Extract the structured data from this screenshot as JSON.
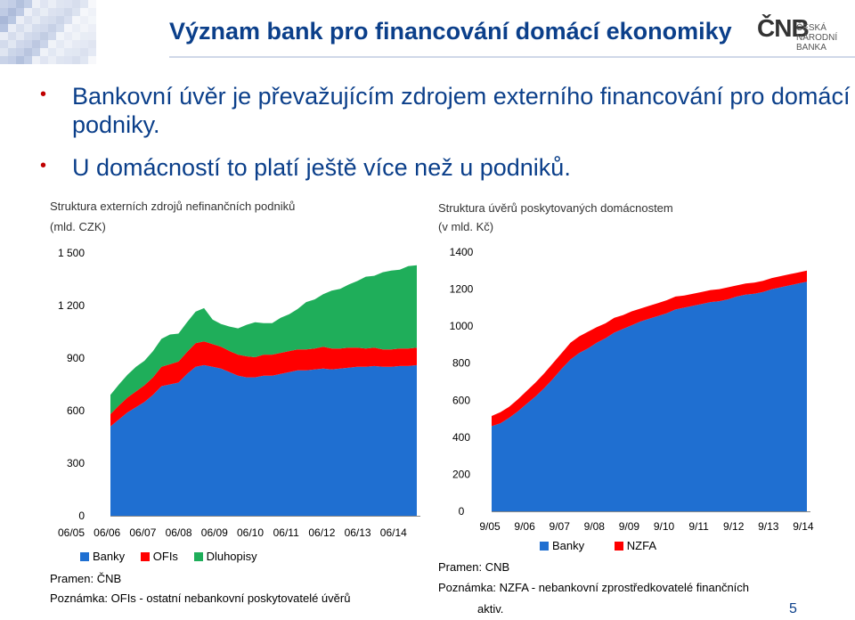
{
  "slide": {
    "title": "Význam bank pro financování domácí ekonomiky",
    "bullets": [
      "Bankovní úvěr je převažujícím zdrojem externího financování pro domácí podniky.",
      "U domácností to platí ještě více než u podniků."
    ],
    "logo": {
      "mark": "ČNB",
      "line1": "ČESKÁ",
      "line2": "NÁRODNÍ BANKA"
    },
    "page_number": "5",
    "colors": {
      "title": "#0b3f8a",
      "bullet_dot": "#c00000"
    }
  },
  "left_chart": {
    "title": "Struktura externích zdrojů nefinančních podniků",
    "unit": "(mld. CZK)",
    "source": "Pramen: ČNB",
    "note": "Poznámka: OFIs - ostatní nebankovní poskytovatelé úvěrů"
  },
  "right_chart": {
    "title": "Struktura úvěrů poskytovaných domácnostem",
    "unit": "(v mld. Kč)",
    "source": "Pramen: CNB",
    "note_line1": "Poznámka: NZFA - nebankovní zprostředkovatelé finančních",
    "note_line2": "aktiv."
  },
  "chart_data": [
    {
      "type": "area",
      "stacked": true,
      "title": "Struktura externích zdrojů nefinančních podniků",
      "ylabel": "(mld. CZK)",
      "ylim": [
        0,
        1500
      ],
      "yticks": [
        0,
        300,
        600,
        900,
        1200,
        1500
      ],
      "ytick_labels": [
        "0",
        "300",
        "600",
        "900",
        "1 200",
        "1 500"
      ],
      "xtick_labels": [
        "06/05",
        "06/06",
        "06/07",
        "06/08",
        "06/09",
        "06/10",
        "06/11",
        "06/12",
        "06/13",
        "06/14"
      ],
      "xlim": [
        0,
        36
      ],
      "grid": false,
      "legend_position": "bottom",
      "series": [
        {
          "name": "Banky",
          "color": "#1f6fd1",
          "values": [
            510,
            550,
            590,
            620,
            650,
            690,
            740,
            750,
            760,
            810,
            850,
            860,
            850,
            840,
            820,
            800,
            790,
            790,
            800,
            800,
            810,
            820,
            830,
            830,
            835,
            840,
            835,
            840,
            845,
            850,
            850,
            855,
            850,
            850,
            855,
            855,
            860
          ]
        },
        {
          "name": "OFIs",
          "color": "#ff0000",
          "values": [
            70,
            80,
            85,
            90,
            95,
            100,
            110,
            115,
            120,
            125,
            135,
            135,
            130,
            125,
            120,
            120,
            120,
            115,
            120,
            120,
            120,
            120,
            120,
            120,
            120,
            125,
            120,
            115,
            115,
            110,
            105,
            105,
            100,
            100,
            100,
            100,
            100
          ]
        },
        {
          "name": "Dluhopisy",
          "color": "#1fae5a",
          "values": [
            110,
            120,
            130,
            140,
            140,
            150,
            160,
            170,
            160,
            170,
            180,
            190,
            140,
            130,
            140,
            150,
            180,
            200,
            180,
            180,
            200,
            210,
            230,
            270,
            280,
            300,
            330,
            340,
            360,
            380,
            410,
            410,
            440,
            450,
            450,
            470,
            470
          ]
        }
      ]
    },
    {
      "type": "area",
      "stacked": true,
      "title": "Struktura úvěrů poskytovaných domácnostem",
      "ylabel": "(v mld. Kč)",
      "ylim": [
        0,
        1400
      ],
      "yticks": [
        0,
        200,
        400,
        600,
        800,
        1000,
        1200,
        1400
      ],
      "ytick_labels": [
        "0",
        "200",
        "400",
        "600",
        "800",
        "1000",
        "1200",
        "1400"
      ],
      "xtick_labels": [
        "9/05",
        "9/06",
        "9/07",
        "9/08",
        "9/09",
        "9/10",
        "9/11",
        "9/12",
        "9/13",
        "9/14"
      ],
      "xlim": [
        0,
        36
      ],
      "grid": false,
      "legend_position": "bottom",
      "series": [
        {
          "name": "Banky",
          "color": "#1f6fd1",
          "values": [
            460,
            475,
            505,
            540,
            580,
            620,
            665,
            715,
            770,
            820,
            855,
            880,
            910,
            935,
            965,
            985,
            1005,
            1025,
            1040,
            1055,
            1070,
            1090,
            1100,
            1110,
            1120,
            1130,
            1135,
            1145,
            1160,
            1170,
            1175,
            1185,
            1200,
            1210,
            1220,
            1230,
            1240
          ]
        },
        {
          "name": "NZFA",
          "color": "#ff0000",
          "values": [
            55,
            60,
            60,
            65,
            70,
            75,
            80,
            85,
            85,
            90,
            90,
            90,
            85,
            80,
            80,
            75,
            75,
            70,
            70,
            70,
            70,
            70,
            65,
            65,
            65,
            65,
            65,
            65,
            60,
            60,
            60,
            60,
            60,
            60,
            60,
            60,
            60
          ]
        }
      ]
    }
  ]
}
